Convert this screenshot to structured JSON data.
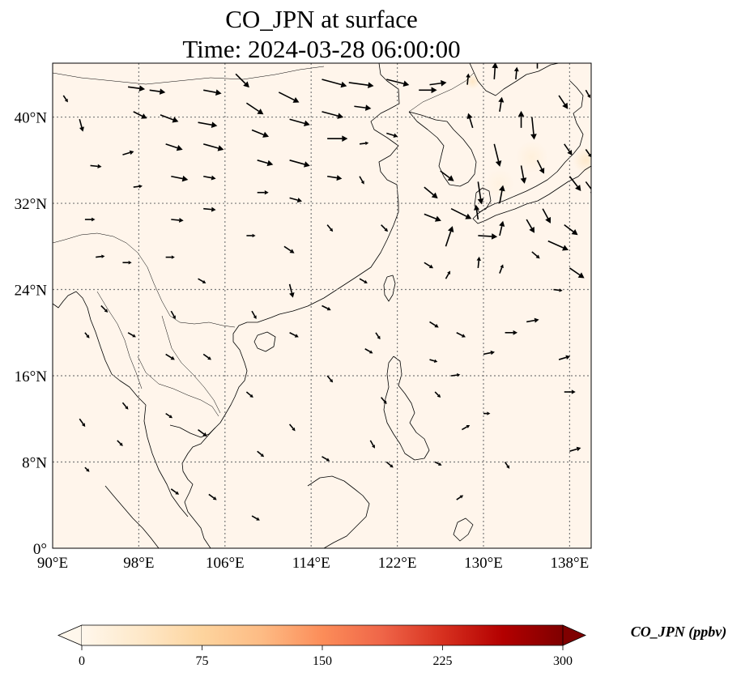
{
  "title": {
    "line1": "CO_JPN at surface",
    "line2": "Time: 2024-03-28 06:00:00"
  },
  "map": {
    "lon_range": [
      90,
      140
    ],
    "lat_range": [
      0,
      45
    ],
    "lon_ticks": [
      {
        "value": 90,
        "label": "90°E"
      },
      {
        "value": 98,
        "label": "98°E"
      },
      {
        "value": 106,
        "label": "106°E"
      },
      {
        "value": 114,
        "label": "114°E"
      },
      {
        "value": 122,
        "label": "122°E"
      },
      {
        "value": 130,
        "label": "130°E"
      },
      {
        "value": 138,
        "label": "138°E"
      }
    ],
    "lat_ticks": [
      {
        "value": 0,
        "label": "0°"
      },
      {
        "value": 8,
        "label": "8°N"
      },
      {
        "value": 16,
        "label": "16°N"
      },
      {
        "value": 24,
        "label": "24°N"
      },
      {
        "value": 32,
        "label": "32°N"
      },
      {
        "value": 40,
        "label": "40°N"
      }
    ],
    "gridlines": true,
    "background_color": "#fff5eb",
    "coastlines": true,
    "wind_vectors": true
  },
  "colorbar": {
    "label": "CO_JPN (ppbv)",
    "min": 0,
    "max": 300,
    "extend": "both",
    "cmap": "OrRd",
    "ticks": [
      {
        "value": 0,
        "label": "0"
      },
      {
        "value": 75,
        "label": "75"
      },
      {
        "value": 150,
        "label": "150"
      },
      {
        "value": 225,
        "label": "225"
      },
      {
        "value": 300,
        "label": "300"
      }
    ],
    "colors": [
      "#fff7ec",
      "#fee8c8",
      "#fdd49e",
      "#fdbb84",
      "#fc8d59",
      "#ef6548",
      "#d7301f",
      "#b30000",
      "#7f0000"
    ]
  },
  "hotspots": [
    {
      "lon": 129.0,
      "lat": 43.3,
      "value": 40,
      "radius_deg": 0.7
    },
    {
      "lon": 139.5,
      "lat": 36.0,
      "value": 35,
      "radius_deg": 1.2
    },
    {
      "lon": 134.5,
      "lat": 36.3,
      "value": 18,
      "radius_deg": 1.5
    },
    {
      "lon": 131.5,
      "lat": 33.8,
      "value": 12,
      "radius_deg": 1.4
    }
  ],
  "wind": [
    [
      91,
      42,
      0.4,
      -0.6
    ],
    [
      92.5,
      39.8,
      0.3,
      -1.1
    ],
    [
      93.5,
      35.5,
      1.0,
      -0.1
    ],
    [
      93,
      30.5,
      0.9,
      0.0
    ],
    [
      94,
      27,
      0.8,
      0.1
    ],
    [
      94.5,
      22.5,
      0.6,
      -0.6
    ],
    [
      93,
      20,
      0.4,
      -0.5
    ],
    [
      92.5,
      12,
      0.5,
      -0.7
    ],
    [
      93,
      7.5,
      0.4,
      -0.4
    ],
    [
      97,
      42.8,
      1.5,
      -0.2
    ],
    [
      97.5,
      40.5,
      1.2,
      -0.6
    ],
    [
      96.5,
      36.5,
      1.0,
      0.3
    ],
    [
      97.5,
      33.5,
      0.8,
      0.1
    ],
    [
      96.5,
      26.5,
      0.8,
      0.0
    ],
    [
      97,
      20,
      0.7,
      -0.4
    ],
    [
      96.5,
      13.5,
      0.5,
      -0.6
    ],
    [
      96,
      10,
      0.5,
      -0.5
    ],
    [
      99,
      42.5,
      1.4,
      -0.2
    ],
    [
      100,
      40.2,
      1.6,
      -0.6
    ],
    [
      100.5,
      37.5,
      1.5,
      -0.5
    ],
    [
      101,
      34.5,
      1.5,
      -0.3
    ],
    [
      101,
      30.5,
      1.1,
      -0.1
    ],
    [
      100.5,
      27,
      0.8,
      0.0
    ],
    [
      101,
      22,
      0.4,
      -0.7
    ],
    [
      100.5,
      18,
      0.8,
      -0.5
    ],
    [
      100.5,
      12.5,
      0.6,
      -0.4
    ],
    [
      101,
      5.5,
      0.7,
      -0.5
    ],
    [
      104,
      42.5,
      1.6,
      -0.3
    ],
    [
      103.5,
      39.5,
      1.7,
      -0.3
    ],
    [
      104,
      37.5,
      1.8,
      -0.5
    ],
    [
      104,
      34.5,
      1.1,
      -0.2
    ],
    [
      104,
      31.5,
      1.1,
      -0.1
    ],
    [
      103.5,
      25,
      0.7,
      -0.4
    ],
    [
      104,
      18,
      0.7,
      -0.5
    ],
    [
      103.5,
      11,
      0.8,
      -0.6
    ],
    [
      104.5,
      5,
      0.7,
      -0.5
    ],
    [
      107,
      44,
      1.2,
      -1.2
    ],
    [
      108,
      41.3,
      1.5,
      -1.0
    ],
    [
      108.5,
      38.8,
      1.5,
      -0.6
    ],
    [
      109,
      36,
      1.4,
      -0.4
    ],
    [
      109,
      33,
      1.0,
      0.0
    ],
    [
      108,
      29,
      0.8,
      0.0
    ],
    [
      108.5,
      22,
      0.4,
      -0.7
    ],
    [
      108,
      14.5,
      0.6,
      -0.5
    ],
    [
      109,
      9,
      0.6,
      -0.5
    ],
    [
      108.5,
      3,
      0.7,
      -0.4
    ],
    [
      111,
      42.3,
      1.8,
      -0.9
    ],
    [
      112,
      39.8,
      1.8,
      -0.5
    ],
    [
      112,
      36,
      1.8,
      -0.5
    ],
    [
      112,
      32.5,
      1.1,
      -0.3
    ],
    [
      111.5,
      28,
      0.9,
      -0.6
    ],
    [
      112,
      24.5,
      0.3,
      -1.2
    ],
    [
      112,
      20,
      0.8,
      -0.4
    ],
    [
      112,
      11.5,
      0.5,
      -0.6
    ],
    [
      115,
      43.5,
      2.2,
      -0.6
    ],
    [
      115,
      40.5,
      1.9,
      -0.5
    ],
    [
      115.5,
      38,
      1.8,
      0.0
    ],
    [
      115.5,
      34.5,
      1.3,
      -0.2
    ],
    [
      115.5,
      30,
      0.5,
      -0.6
    ],
    [
      115,
      22.5,
      0.8,
      -0.4
    ],
    [
      115.5,
      16,
      0.5,
      -0.6
    ],
    [
      115,
      8.5,
      0.7,
      -0.4
    ],
    [
      117.5,
      43.2,
      2.2,
      -0.3
    ],
    [
      118,
      41,
      1.5,
      -0.2
    ],
    [
      118.5,
      37.5,
      0.8,
      0.1
    ],
    [
      118.5,
      34.5,
      0.4,
      -0.7
    ],
    [
      118.5,
      25,
      0.7,
      -0.4
    ],
    [
      119,
      18.5,
      0.7,
      -0.4
    ],
    [
      119.5,
      10,
      0.4,
      -0.7
    ],
    [
      121,
      43.5,
      2.0,
      -0.5
    ],
    [
      121,
      38.5,
      1.0,
      -0.3
    ],
    [
      120.5,
      30,
      0.6,
      -0.6
    ],
    [
      120,
      20,
      0.4,
      -0.6
    ],
    [
      120.5,
      14,
      0.5,
      -0.6
    ],
    [
      121,
      8,
      0.6,
      -0.5
    ],
    [
      124,
      42.5,
      1.6,
      0.0
    ],
    [
      125,
      43,
      1.5,
      0.2
    ],
    [
      124.5,
      33.5,
      1.2,
      -1.0
    ],
    [
      124.5,
      31,
      1.5,
      -0.6
    ],
    [
      124.5,
      26.5,
      0.8,
      -0.5
    ],
    [
      125,
      21,
      0.8,
      -0.5
    ],
    [
      125,
      17.5,
      0.7,
      -0.2
    ],
    [
      125.5,
      14.5,
      0.5,
      -0.5
    ],
    [
      125.5,
      8,
      0.6,
      -0.3
    ],
    [
      126,
      35,
      1.2,
      -0.9
    ],
    [
      127,
      31.5,
      1.8,
      -0.9
    ],
    [
      126.5,
      28,
      0.6,
      1.8
    ],
    [
      126.5,
      25,
      0.4,
      0.7
    ],
    [
      127.5,
      20,
      0.8,
      -0.4
    ],
    [
      127,
      16,
      0.8,
      0.1
    ],
    [
      128,
      11,
      0.7,
      0.4
    ],
    [
      127.5,
      4.5,
      0.6,
      0.4
    ],
    [
      128.5,
      43,
      0.1,
      1.0
    ],
    [
      129,
      39,
      -0.4,
      1.3
    ],
    [
      129.5,
      34,
      0.3,
      -2.0
    ],
    [
      129.5,
      30.5,
      -0.2,
      1.3
    ],
    [
      129.5,
      29,
      1.7,
      -0.1
    ],
    [
      129.5,
      26,
      0.1,
      1.0
    ],
    [
      130,
      18,
      1.0,
      0.2
    ],
    [
      130,
      12.5,
      0.6,
      0.0
    ],
    [
      131,
      43.5,
      0.1,
      1.5
    ],
    [
      131.5,
      40.5,
      0.2,
      1.3
    ],
    [
      131,
      37.5,
      0.5,
      -2.0
    ],
    [
      131.5,
      32,
      0.3,
      1.6
    ],
    [
      131.5,
      29,
      0.3,
      1.3
    ],
    [
      131.5,
      25.5,
      0.3,
      0.8
    ],
    [
      132,
      20,
      1.1,
      0.0
    ],
    [
      132,
      8,
      0.4,
      -0.6
    ],
    [
      133,
      43.5,
      0.1,
      1.1
    ],
    [
      133.5,
      39,
      0.0,
      1.5
    ],
    [
      133.5,
      35.5,
      0.3,
      -1.6
    ],
    [
      134,
      30.5,
      0.7,
      -1.2
    ],
    [
      134.5,
      27.5,
      0.7,
      -0.6
    ],
    [
      134,
      21,
      1.1,
      0.2
    ],
    [
      135,
      44.5,
      0.0,
      1.0
    ],
    [
      134.5,
      40,
      0.2,
      -2.0
    ],
    [
      135,
      36,
      0.6,
      -1.2
    ],
    [
      135.5,
      31.5,
      0.7,
      -1.3
    ],
    [
      136,
      28.5,
      1.8,
      -0.8
    ],
    [
      136.5,
      24,
      0.8,
      -0.1
    ],
    [
      137,
      17.5,
      1.0,
      0.3
    ],
    [
      137.5,
      14.5,
      1.0,
      0.0
    ],
    [
      137,
      42,
      0.8,
      -1.2
    ],
    [
      137.5,
      37.5,
      0.7,
      -1.0
    ],
    [
      138,
      34.5,
      1.0,
      -1.3
    ],
    [
      137.5,
      30,
      1.2,
      -0.9
    ],
    [
      138,
      26,
      1.3,
      -0.9
    ],
    [
      138,
      9,
      1.0,
      0.3
    ],
    [
      139.5,
      42.5,
      0.4,
      -0.7
    ],
    [
      139.5,
      37,
      0.5,
      -0.7
    ],
    [
      139.5,
      34,
      0.9,
      -1.2
    ]
  ]
}
